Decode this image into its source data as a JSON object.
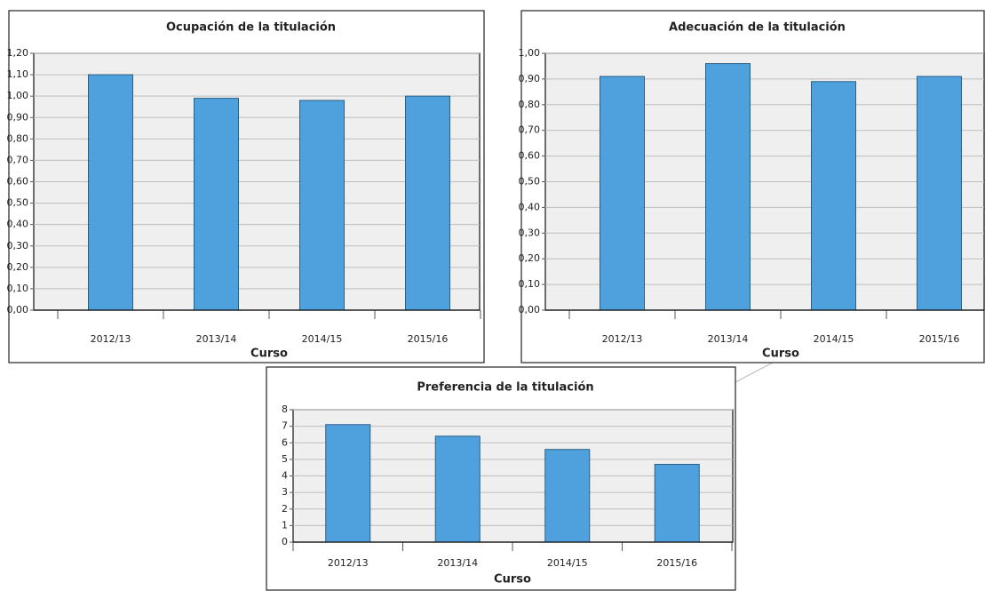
{
  "chart_data": [
    {
      "type": "bar",
      "title": "Ocupación de la titulación",
      "x_label": "Curso",
      "categories": [
        "2012/13",
        "2013/14",
        "2014/15",
        "2015/16"
      ],
      "values": [
        1.1,
        0.99,
        0.98,
        1.0
      ],
      "color": "#4ea1dc",
      "ylim": [
        0,
        1.2
      ],
      "yticks": [
        {
          "value": 0,
          "label": "0,00"
        },
        {
          "value": 0.1,
          "label": "0,10"
        },
        {
          "value": 0.2,
          "label": "0,20"
        },
        {
          "value": 0.3,
          "label": "0,30"
        },
        {
          "value": 0.4,
          "label": "0,40"
        },
        {
          "value": 0.5,
          "label": "0,50"
        },
        {
          "value": 0.6,
          "label": "0,60"
        },
        {
          "value": 0.7,
          "label": "0,70"
        },
        {
          "value": 0.8,
          "label": "0,80"
        },
        {
          "value": 0.9,
          "label": "0,90"
        },
        {
          "value": 1.0,
          "label": "1,00"
        },
        {
          "value": 1.1,
          "label": "1,10"
        },
        {
          "value": 1.2,
          "label": "1,20"
        }
      ],
      "grid": true
    },
    {
      "type": "bar",
      "title": "Adecuación de la titulación",
      "x_label": "Curso",
      "categories": [
        "2012/13",
        "2013/14",
        "2014/15",
        "2015/16"
      ],
      "values": [
        0.91,
        0.96,
        0.89,
        0.91
      ],
      "color": "#4ea1dc",
      "ylim": [
        0,
        1.0
      ],
      "yticks": [
        {
          "value": 0,
          "label": "0,00"
        },
        {
          "value": 0.1,
          "label": "0,10"
        },
        {
          "value": 0.2,
          "label": "0,20"
        },
        {
          "value": 0.3,
          "label": "0,30"
        },
        {
          "value": 0.4,
          "label": "0,40"
        },
        {
          "value": 0.5,
          "label": "0,50"
        },
        {
          "value": 0.6,
          "label": "0,60"
        },
        {
          "value": 0.7,
          "label": "0,70"
        },
        {
          "value": 0.8,
          "label": "0,80"
        },
        {
          "value": 0.9,
          "label": "0,90"
        },
        {
          "value": 1.0,
          "label": "1,00"
        }
      ],
      "grid": true
    },
    {
      "type": "bar",
      "title": "Preferencia de la titulación",
      "x_label": "Curso",
      "categories": [
        "2012/13",
        "2013/14",
        "2014/15",
        "2015/16"
      ],
      "values": [
        7.1,
        6.4,
        5.6,
        4.7
      ],
      "color": "#4ea1dc",
      "ylim": [
        0,
        8
      ],
      "yticks": [
        0,
        1,
        2,
        3,
        4,
        5,
        6,
        7,
        8
      ],
      "grid": true
    }
  ]
}
